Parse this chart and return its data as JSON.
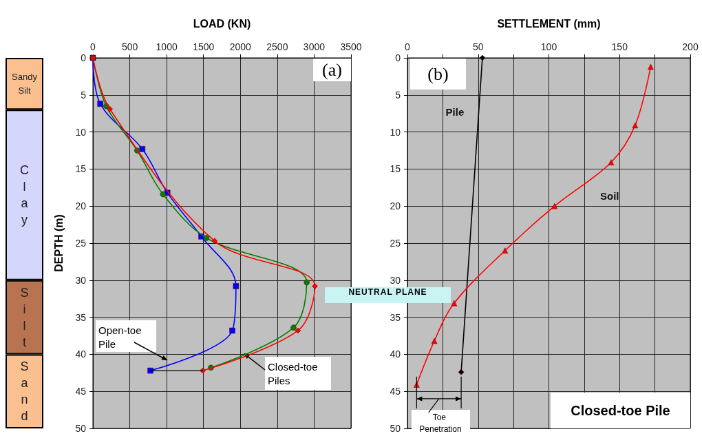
{
  "chart_data": [
    {
      "type": "bar",
      "stacked": true,
      "categories": [
        null
      ],
      "ylim": [
        50,
        0
      ],
      "yticks": [
        0,
        5,
        10,
        15,
        20,
        25,
        30,
        35,
        40,
        45,
        50
      ],
      "tick_labels": false,
      "series": [
        {
          "name": "Sandy Silt",
          "color": "#fac090",
          "values": [
            7
          ]
        },
        {
          "name": "Clay",
          "color": "#d4d6fc",
          "values": [
            23
          ]
        },
        {
          "name": "Silt",
          "color": "#b87450",
          "values": [
            10
          ]
        },
        {
          "name": "Sand",
          "color": "#fac090",
          "values": [
            10
          ]
        }
      ]
    },
    {
      "type": "line",
      "xlabel": "LOAD (KN)",
      "ylabel": "DEPTH (m)",
      "xlim": [
        0,
        3500
      ],
      "xticks": [
        0,
        500,
        1000,
        1500,
        2000,
        2500,
        3000,
        3500
      ],
      "ylim": [
        50,
        0
      ],
      "yticks": [
        0,
        5,
        10,
        15,
        20,
        25,
        30,
        35,
        40,
        45,
        50
      ],
      "grid": true,
      "line_style": "solid",
      "series": [
        {
          "color": "#0000ff",
          "marker": "square",
          "x": [
            0,
            100,
            670,
            1010,
            1470,
            1940,
            1890,
            780
          ],
          "values": [
            0,
            6.2,
            12.3,
            18.2,
            24.1,
            30.8,
            36.8,
            42.2
          ]
        },
        {
          "color": "#008000",
          "marker": "circle",
          "x": [
            0,
            180,
            600,
            950,
            1540,
            2900,
            2720,
            1600
          ],
          "values": [
            0,
            6.5,
            12.5,
            18.4,
            24.3,
            30.3,
            36.4,
            41.8
          ]
        },
        {
          "color": "#ff0000",
          "marker": "diamond",
          "x": [
            0,
            230,
            1650,
            3010,
            2780,
            1490
          ],
          "values": [
            0,
            6.9,
            24.7,
            30.8,
            36.8,
            42.2
          ]
        },
        {
          "color": "#000000",
          "marker": "none",
          "x": [
            780,
            1490
          ],
          "values": [
            42.2,
            42.2
          ]
        }
      ],
      "annotations": [
        "(a)",
        "Open-toe Pile",
        {
          "text": "Closed-toe Piles",
          "x": 2050,
          "y": 39.9
        }
      ]
    },
    {
      "type": "line",
      "xlabel": "SETTLEMENT (mm)",
      "xlim": [
        0,
        200
      ],
      "xticks": [
        0,
        {
          "value": 25,
          "label": null
        },
        50,
        {
          "value": 75,
          "label": null
        },
        100,
        {
          "value": 125,
          "label": null
        },
        150,
        {
          "value": 175,
          "label": null
        },
        200
      ],
      "ylim": [
        50,
        0
      ],
      "yticks": [
        0,
        5,
        10,
        15,
        20,
        25,
        30,
        35,
        40,
        45,
        50
      ],
      "grid": true,
      "line_style": "solid",
      "series": [
        {
          "name": "Pile",
          "color": "#000000",
          "marker": "diamond",
          "x": [
            53,
            38
          ],
          "values": [
            0,
            42.4
          ]
        },
        {
          "name": "Soil",
          "color": "#ff0000",
          "marker": "triangle",
          "x": [
            172,
            161,
            144,
            104,
            69,
            33,
            19,
            6.5
          ],
          "values": [
            1.2,
            9.1,
            14.1,
            20,
            26,
            33.1,
            38.2,
            44.1
          ]
        }
      ],
      "annotations": [
        "(b)",
        "NEUTRAL PLANE",
        "Toe Penetration",
        "Closed-toe Pile"
      ]
    }
  ]
}
